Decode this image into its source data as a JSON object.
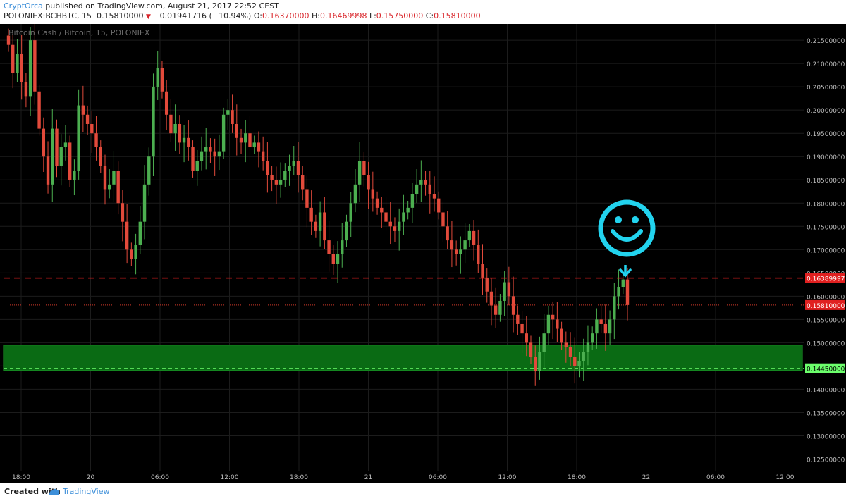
{
  "header": {
    "author": "CryptOrca",
    "published": "published on TradingView.com, August 21, 2017 22:52 CEST",
    "symbol": "POLONIEX:BCHBTC, 15",
    "last": "0.15810000",
    "change": "−0.01941716 (−10.94%)",
    "o_label": "O:",
    "o_val": "0.16370000",
    "h_label": "H:",
    "h_val": "0.16469998",
    "l_label": "L:",
    "l_val": "0.15750000",
    "c_label": "C:",
    "c_val": "0.15810000"
  },
  "footer": {
    "created": "Created with",
    "brand": "TradingView"
  },
  "colors": {
    "up": "#4caf50",
    "down": "#e24a3b",
    "zone": "#0a6b14",
    "resistance": "#e02020",
    "price_line": "#d43a2a",
    "smiley": "#22d3ee"
  },
  "chart_data": {
    "type": "candlestick",
    "title": "Bitcoin Cash / Bitcoin, 15, POLONIEX",
    "ylim": [
      0.1225,
      0.2185
    ],
    "y_ticks": [
      "0.12500000",
      "0.13000000",
      "0.13500000",
      "0.14000000",
      "0.14500000",
      "0.15000000",
      "0.15500000",
      "0.16000000",
      "0.16500000",
      "0.17000000",
      "0.17500000",
      "0.18000000",
      "0.18500000",
      "0.19000000",
      "0.19500000",
      "0.20000000",
      "0.20500000",
      "0.21000000",
      "0.21500000"
    ],
    "x_ticks": [
      "18:00",
      "20",
      "06:00",
      "12:00",
      "18:00",
      "21",
      "06:00",
      "12:00",
      "18:00",
      "22",
      "06:00",
      "12:00"
    ],
    "closes": [
      0.214,
      0.208,
      0.212,
      0.206,
      0.203,
      0.215,
      0.204,
      0.196,
      0.19,
      0.184,
      0.196,
      0.188,
      0.192,
      0.193,
      0.185,
      0.187,
      0.201,
      0.199,
      0.197,
      0.195,
      0.192,
      0.188,
      0.183,
      0.184,
      0.187,
      0.18,
      0.176,
      0.17,
      0.168,
      0.171,
      0.176,
      0.184,
      0.19,
      0.205,
      0.209,
      0.204,
      0.199,
      0.195,
      0.197,
      0.193,
      0.194,
      0.192,
      0.187,
      0.189,
      0.191,
      0.192,
      0.191,
      0.19,
      0.191,
      0.199,
      0.2,
      0.197,
      0.194,
      0.193,
      0.195,
      0.192,
      0.193,
      0.191,
      0.189,
      0.186,
      0.185,
      0.184,
      0.185,
      0.187,
      0.188,
      0.189,
      0.186,
      0.183,
      0.179,
      0.176,
      0.174,
      0.178,
      0.172,
      0.169,
      0.167,
      0.169,
      0.172,
      0.176,
      0.18,
      0.184,
      0.189,
      0.186,
      0.183,
      0.181,
      0.179,
      0.178,
      0.176,
      0.175,
      0.174,
      0.176,
      0.178,
      0.179,
      0.182,
      0.184,
      0.185,
      0.184,
      0.182,
      0.181,
      0.178,
      0.175,
      0.172,
      0.17,
      0.169,
      0.17,
      0.172,
      0.174,
      0.171,
      0.167,
      0.164,
      0.161,
      0.158,
      0.156,
      0.159,
      0.163,
      0.16,
      0.156,
      0.154,
      0.152,
      0.15,
      0.147,
      0.144,
      0.148,
      0.152,
      0.156,
      0.155,
      0.153,
      0.15,
      0.149,
      0.147,
      0.145,
      0.146,
      0.148,
      0.15,
      0.152,
      0.155,
      0.154,
      0.152,
      0.155,
      0.16,
      0.162,
      0.1636,
      0.1581
    ]
  }
}
